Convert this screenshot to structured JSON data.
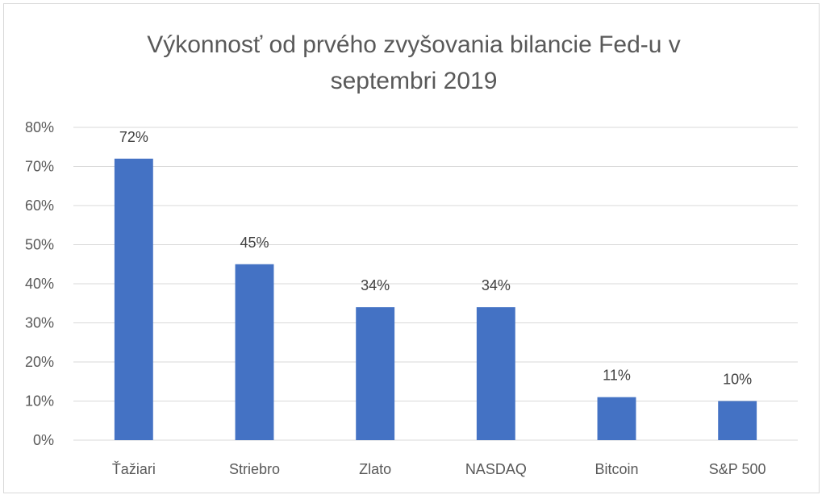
{
  "chart_data": {
    "type": "bar",
    "title_lines": [
      "Výkonnosť od prvého zvyšovania bilancie Fed-u v",
      "septembri 2019"
    ],
    "categories": [
      "Ťažiari",
      "Striebro",
      "Zlato",
      "NASDAQ",
      "Bitcoin",
      "S&P 500"
    ],
    "values": [
      72,
      45,
      34,
      34,
      11,
      10
    ],
    "data_labels": [
      "72%",
      "45%",
      "34%",
      "34%",
      "11%",
      "10%"
    ],
    "y_ticks": [
      0,
      10,
      20,
      30,
      40,
      50,
      60,
      70,
      80
    ],
    "y_tick_labels": [
      "0%",
      "10%",
      "20%",
      "30%",
      "40%",
      "50%",
      "60%",
      "70%",
      "80%"
    ],
    "ylim": [
      0,
      80
    ],
    "grid": true,
    "legend": "none",
    "bar_color": "#4472c4",
    "grid_color": "#d9d9d9"
  }
}
